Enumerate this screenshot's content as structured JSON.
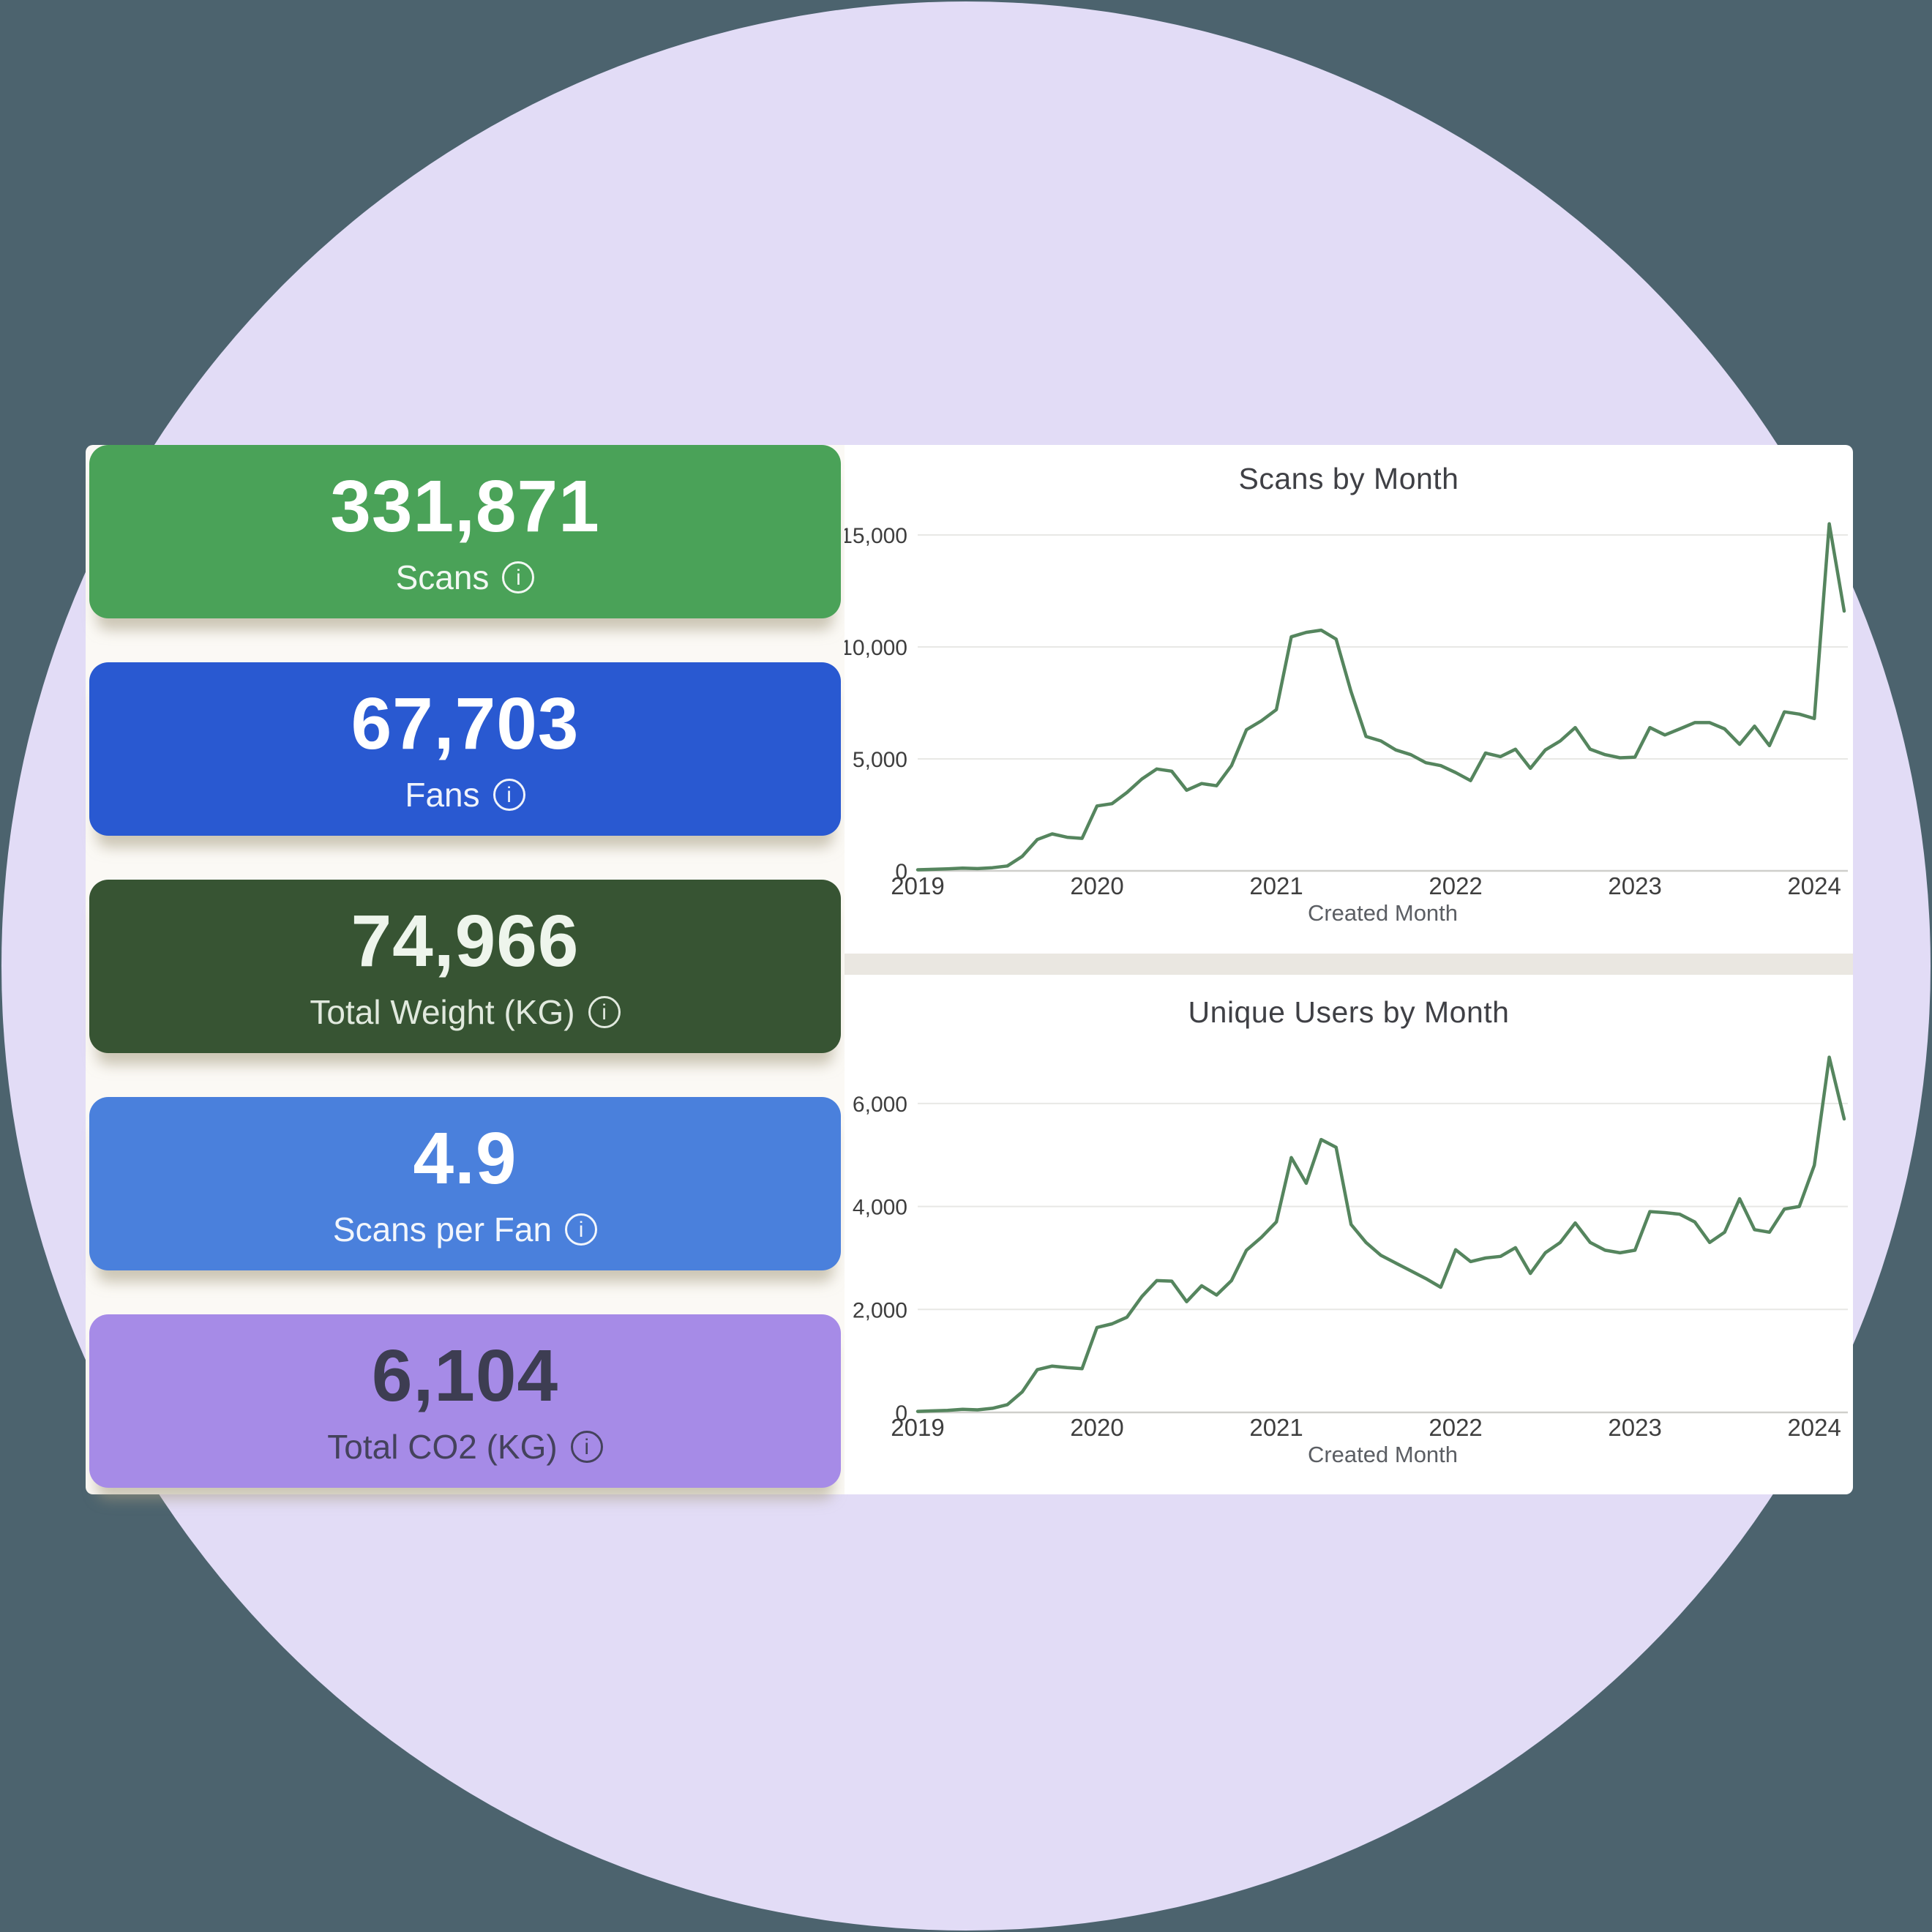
{
  "background": {
    "outer_color": "#4c636e",
    "circle_color": "#e2dcf6",
    "panel_color": "#fbf9f5",
    "chart_panel_color": "#ffffff",
    "divider_color": "#eae7e1"
  },
  "stats": {
    "info_icon_glyph": "i",
    "cards": [
      {
        "value": "331,871",
        "label": "Scans",
        "bg": "#4aa258",
        "text_color": "#ffffff"
      },
      {
        "value": "67,703",
        "label": "Fans",
        "bg": "#2959d1",
        "text_color": "#ffffff"
      },
      {
        "value": "74,966",
        "label": "Total Weight (KG)",
        "bg": "#375433",
        "text_color": "#eef5ec"
      },
      {
        "value": "4.9",
        "label": "Scans per Fan",
        "bg": "#4a80dc",
        "text_color": "#ffffff"
      },
      {
        "value": "6,104",
        "label": "Total CO2 (KG)",
        "bg": "#a68be7",
        "text_color": "#3d3d52"
      }
    ]
  },
  "chart_data": [
    {
      "type": "line",
      "title": "Scans by Month",
      "xlabel": "Created Month",
      "x_start": "2019-01",
      "x_end": "2024-03",
      "x_interval": "month",
      "x_tick_labels": [
        "2019",
        "2020",
        "2021",
        "2022",
        "2023",
        "2024"
      ],
      "yticks": [
        0,
        5000,
        10000,
        15000
      ],
      "ylim": [
        0,
        16000
      ],
      "grid": "horizontal",
      "legend": "none",
      "line_color": "#55855e",
      "values": [
        50,
        70,
        90,
        120,
        100,
        140,
        220,
        650,
        1400,
        1650,
        1500,
        1450,
        2900,
        3000,
        3500,
        4100,
        4550,
        4450,
        3600,
        3900,
        3800,
        4700,
        6300,
        6700,
        7200,
        10450,
        10650,
        10750,
        10350,
        8000,
        6000,
        5800,
        5400,
        5190,
        4830,
        4700,
        4390,
        4030,
        5260,
        5100,
        5430,
        4580,
        5400,
        5800,
        6400,
        5430,
        5190,
        5050,
        5080,
        6400,
        6070,
        6340,
        6620,
        6620,
        6340,
        5650,
        6460,
        5590,
        7100,
        7000,
        6800,
        15500,
        11600
      ]
    },
    {
      "type": "line",
      "title": "Unique Users by Month",
      "xlabel": "Created Month",
      "x_start": "2019-01",
      "x_end": "2024-03",
      "x_interval": "month",
      "x_tick_labels": [
        "2019",
        "2020",
        "2021",
        "2022",
        "2023",
        "2024"
      ],
      "yticks": [
        0,
        2000,
        4000,
        6000
      ],
      "ylim": [
        0,
        6950
      ],
      "grid": "horizontal",
      "legend": "none",
      "line_color": "#55855e",
      "values": [
        20,
        30,
        40,
        60,
        50,
        80,
        150,
        400,
        830,
        900,
        870,
        850,
        1650,
        1720,
        1850,
        2250,
        2560,
        2550,
        2150,
        2460,
        2280,
        2560,
        3150,
        3400,
        3700,
        4950,
        4450,
        5300,
        5150,
        3650,
        3300,
        3050,
        2900,
        2750,
        2600,
        2430,
        3160,
        2930,
        3000,
        3030,
        3200,
        2700,
        3100,
        3300,
        3680,
        3300,
        3150,
        3100,
        3150,
        3900,
        3880,
        3850,
        3700,
        3300,
        3500,
        4150,
        3550,
        3500,
        3950,
        4000,
        4800,
        6900,
        5700
      ]
    }
  ]
}
